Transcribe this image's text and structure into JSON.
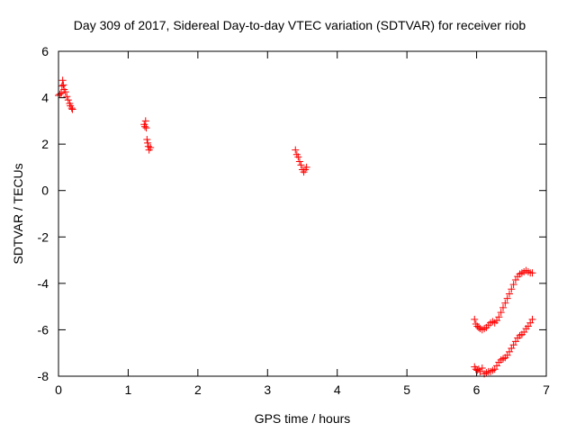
{
  "chart_data": {
    "type": "scatter",
    "title": "Day 309 of 2017, Sidereal Day-to-day VTEC variation (SDTVAR) for receiver riob",
    "xlabel": "GPS time / hours",
    "ylabel": "SDTVAR / TECUs",
    "xlim": [
      0,
      7
    ],
    "ylim": [
      -8,
      6
    ],
    "xticks": [
      0,
      1,
      2,
      3,
      4,
      5,
      6,
      7
    ],
    "yticks": [
      -8,
      -6,
      -4,
      -2,
      0,
      2,
      4,
      6
    ],
    "xtick_labels": [
      "0",
      "1",
      "2",
      "3",
      "4",
      "5",
      "6",
      "7"
    ],
    "ytick_labels": [
      "-8",
      "-6",
      "-4",
      "-2",
      "0",
      "2",
      "4",
      "6"
    ],
    "grid": false,
    "marker": "plus",
    "series": [
      {
        "name": "SDTVAR",
        "color": "#ff0000",
        "points": [
          [
            0.0,
            4.1
          ],
          [
            0.02,
            4.15
          ],
          [
            0.04,
            4.2
          ],
          [
            0.05,
            4.5
          ],
          [
            0.06,
            4.75
          ],
          [
            0.07,
            4.55
          ],
          [
            0.08,
            4.35
          ],
          [
            0.1,
            4.25
          ],
          [
            0.12,
            4.05
          ],
          [
            0.14,
            3.9
          ],
          [
            0.16,
            3.75
          ],
          [
            0.17,
            3.65
          ],
          [
            0.19,
            3.55
          ],
          [
            0.2,
            3.5
          ],
          [
            1.23,
            2.85
          ],
          [
            1.24,
            2.75
          ],
          [
            1.25,
            3.0
          ],
          [
            1.26,
            2.7
          ],
          [
            1.27,
            2.2
          ],
          [
            1.28,
            2.05
          ],
          [
            1.29,
            1.9
          ],
          [
            1.3,
            1.75
          ],
          [
            1.32,
            1.85
          ],
          [
            3.4,
            1.75
          ],
          [
            3.42,
            1.55
          ],
          [
            3.44,
            1.45
          ],
          [
            3.46,
            1.25
          ],
          [
            3.48,
            1.1
          ],
          [
            3.5,
            0.9
          ],
          [
            3.52,
            0.8
          ],
          [
            3.54,
            0.9
          ],
          [
            3.56,
            1.0
          ],
          [
            5.97,
            -5.55
          ],
          [
            5.99,
            -5.75
          ],
          [
            6.01,
            -5.85
          ],
          [
            6.03,
            -5.9
          ],
          [
            6.05,
            -5.95
          ],
          [
            6.08,
            -6.0
          ],
          [
            6.11,
            -5.95
          ],
          [
            6.14,
            -5.9
          ],
          [
            6.17,
            -5.8
          ],
          [
            6.2,
            -5.7
          ],
          [
            6.23,
            -5.65
          ],
          [
            6.26,
            -5.7
          ],
          [
            6.29,
            -5.6
          ],
          [
            6.32,
            -5.45
          ],
          [
            6.35,
            -5.25
          ],
          [
            6.38,
            -5.05
          ],
          [
            6.41,
            -4.85
          ],
          [
            6.44,
            -4.65
          ],
          [
            6.47,
            -4.45
          ],
          [
            6.5,
            -4.25
          ],
          [
            6.53,
            -4.05
          ],
          [
            6.56,
            -3.85
          ],
          [
            6.59,
            -3.7
          ],
          [
            6.62,
            -3.6
          ],
          [
            6.65,
            -3.55
          ],
          [
            6.68,
            -3.5
          ],
          [
            6.71,
            -3.45
          ],
          [
            6.74,
            -3.5
          ],
          [
            6.77,
            -3.55
          ],
          [
            6.8,
            -3.55
          ],
          [
            5.97,
            -7.6
          ],
          [
            5.99,
            -7.7
          ],
          [
            6.01,
            -7.75
          ],
          [
            6.03,
            -7.7
          ],
          [
            6.05,
            -7.8
          ],
          [
            6.08,
            -7.65
          ],
          [
            6.11,
            -7.9
          ],
          [
            6.14,
            -7.85
          ],
          [
            6.17,
            -7.8
          ],
          [
            6.2,
            -7.8
          ],
          [
            6.23,
            -7.75
          ],
          [
            6.26,
            -7.7
          ],
          [
            6.29,
            -7.55
          ],
          [
            6.32,
            -7.4
          ],
          [
            6.35,
            -7.3
          ],
          [
            6.38,
            -7.25
          ],
          [
            6.41,
            -7.2
          ],
          [
            6.44,
            -7.1
          ],
          [
            6.47,
            -6.95
          ],
          [
            6.5,
            -6.8
          ],
          [
            6.53,
            -6.65
          ],
          [
            6.56,
            -6.5
          ],
          [
            6.59,
            -6.35
          ],
          [
            6.62,
            -6.25
          ],
          [
            6.65,
            -6.2
          ],
          [
            6.68,
            -6.1
          ],
          [
            6.71,
            -5.95
          ],
          [
            6.74,
            -5.85
          ],
          [
            6.77,
            -5.7
          ],
          [
            6.8,
            -5.55
          ]
        ]
      }
    ]
  }
}
